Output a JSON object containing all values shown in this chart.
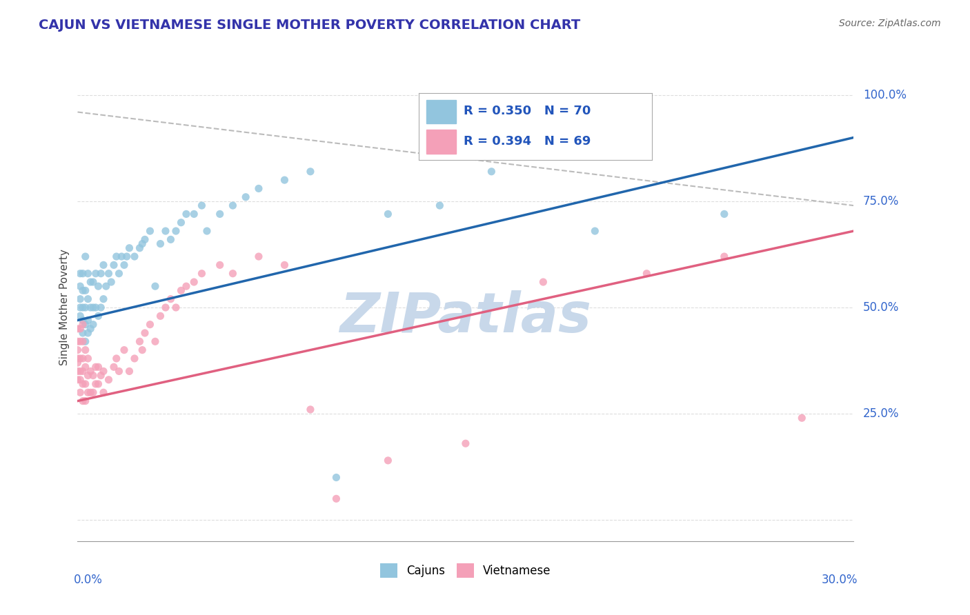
{
  "title": "CAJUN VS VIETNAMESE SINGLE MOTHER POVERTY CORRELATION CHART",
  "source": "Source: ZipAtlas.com",
  "ylabel": "Single Mother Poverty",
  "xlim": [
    0.0,
    0.3
  ],
  "ylim": [
    -0.05,
    1.05
  ],
  "cajun_R": 0.35,
  "cajun_N": 70,
  "vietnamese_R": 0.394,
  "vietnamese_N": 69,
  "cajun_color": "#92c5de",
  "vietnamese_color": "#f4a0b8",
  "cajun_line_color": "#2166ac",
  "vietnamese_line_color": "#e06080",
  "dash_line_color": "#bbbbbb",
  "watermark": "ZIPatlas",
  "watermark_color": "#c8d8ea",
  "cajun_x": [
    0.001,
    0.001,
    0.001,
    0.001,
    0.001,
    0.002,
    0.002,
    0.002,
    0.002,
    0.002,
    0.003,
    0.003,
    0.003,
    0.003,
    0.003,
    0.004,
    0.004,
    0.004,
    0.004,
    0.005,
    0.005,
    0.005,
    0.006,
    0.006,
    0.006,
    0.007,
    0.007,
    0.008,
    0.008,
    0.009,
    0.009,
    0.01,
    0.01,
    0.011,
    0.012,
    0.013,
    0.014,
    0.015,
    0.016,
    0.017,
    0.018,
    0.019,
    0.02,
    0.022,
    0.024,
    0.025,
    0.026,
    0.028,
    0.03,
    0.032,
    0.034,
    0.036,
    0.038,
    0.04,
    0.042,
    0.045,
    0.048,
    0.05,
    0.055,
    0.06,
    0.065,
    0.07,
    0.08,
    0.09,
    0.1,
    0.12,
    0.14,
    0.16,
    0.2,
    0.25
  ],
  "cajun_y": [
    0.48,
    0.5,
    0.52,
    0.55,
    0.58,
    0.44,
    0.47,
    0.5,
    0.54,
    0.58,
    0.42,
    0.46,
    0.5,
    0.54,
    0.62,
    0.44,
    0.47,
    0.52,
    0.58,
    0.45,
    0.5,
    0.56,
    0.46,
    0.5,
    0.56,
    0.5,
    0.58,
    0.48,
    0.55,
    0.5,
    0.58,
    0.52,
    0.6,
    0.55,
    0.58,
    0.56,
    0.6,
    0.62,
    0.58,
    0.62,
    0.6,
    0.62,
    0.64,
    0.62,
    0.64,
    0.65,
    0.66,
    0.68,
    0.55,
    0.65,
    0.68,
    0.66,
    0.68,
    0.7,
    0.72,
    0.72,
    0.74,
    0.68,
    0.72,
    0.74,
    0.76,
    0.78,
    0.8,
    0.82,
    0.1,
    0.72,
    0.74,
    0.82,
    0.68,
    0.72
  ],
  "viet_x": [
    0.0,
    0.0,
    0.0,
    0.0,
    0.0,
    0.0,
    0.0,
    0.001,
    0.001,
    0.001,
    0.001,
    0.001,
    0.001,
    0.002,
    0.002,
    0.002,
    0.002,
    0.002,
    0.002,
    0.003,
    0.003,
    0.003,
    0.003,
    0.004,
    0.004,
    0.004,
    0.005,
    0.005,
    0.006,
    0.006,
    0.007,
    0.007,
    0.008,
    0.008,
    0.009,
    0.01,
    0.01,
    0.012,
    0.014,
    0.015,
    0.016,
    0.018,
    0.02,
    0.022,
    0.024,
    0.025,
    0.026,
    0.028,
    0.03,
    0.032,
    0.034,
    0.036,
    0.038,
    0.04,
    0.042,
    0.045,
    0.048,
    0.055,
    0.06,
    0.07,
    0.08,
    0.09,
    0.1,
    0.12,
    0.15,
    0.18,
    0.22,
    0.25,
    0.28
  ],
  "viet_y": [
    0.33,
    0.35,
    0.37,
    0.38,
    0.4,
    0.42,
    0.45,
    0.3,
    0.33,
    0.35,
    0.38,
    0.42,
    0.45,
    0.28,
    0.32,
    0.35,
    0.38,
    0.42,
    0.46,
    0.28,
    0.32,
    0.36,
    0.4,
    0.3,
    0.34,
    0.38,
    0.3,
    0.35,
    0.3,
    0.34,
    0.32,
    0.36,
    0.32,
    0.36,
    0.34,
    0.3,
    0.35,
    0.33,
    0.36,
    0.38,
    0.35,
    0.4,
    0.35,
    0.38,
    0.42,
    0.4,
    0.44,
    0.46,
    0.42,
    0.48,
    0.5,
    0.52,
    0.5,
    0.54,
    0.55,
    0.56,
    0.58,
    0.6,
    0.58,
    0.62,
    0.6,
    0.26,
    0.05,
    0.14,
    0.18,
    0.56,
    0.58,
    0.62,
    0.24
  ],
  "cajun_line_x0": 0.0,
  "cajun_line_y0": 0.47,
  "cajun_line_x1": 0.3,
  "cajun_line_y1": 0.9,
  "viet_line_x0": 0.0,
  "viet_line_y0": 0.28,
  "viet_line_x1": 0.3,
  "viet_line_y1": 0.68,
  "dash_line_x0": 0.0,
  "dash_line_y0": 0.96,
  "dash_line_x1": 0.3,
  "dash_line_y1": 0.74
}
